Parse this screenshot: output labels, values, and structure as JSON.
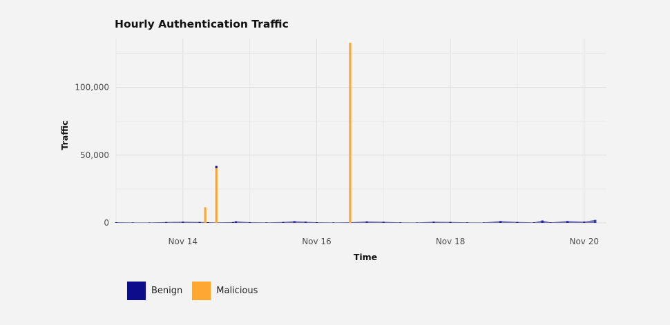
{
  "chart_data": {
    "type": "bar",
    "title": "Hourly Authentication Traffic",
    "xlabel": "Time",
    "ylabel": "Traffic",
    "ylim": [
      0,
      136000
    ],
    "y_ticks": [
      0,
      50000,
      100000
    ],
    "y_tick_labels": [
      "0",
      "50,000",
      "100,000"
    ],
    "x_range": [
      "2024-11-13T00:00",
      "2024-11-20T08:00"
    ],
    "x_ticks": [
      "2024-11-14T00:00",
      "2024-11-16T00:00",
      "2024-11-18T00:00",
      "2024-11-20T00:00"
    ],
    "x_tick_labels": [
      "Nov 14",
      "Nov 16",
      "Nov 18",
      "Nov 20"
    ],
    "grid": true,
    "legend_position": "bottom-left",
    "stacked": true,
    "series": [
      {
        "name": "Benign",
        "color": "#0d0d8c",
        "points": [
          [
            "2024-11-13T00:00",
            500
          ],
          [
            "2024-11-13T06:00",
            350
          ],
          [
            "2024-11-13T12:00",
            300
          ],
          [
            "2024-11-13T18:00",
            650
          ],
          [
            "2024-11-14T00:00",
            900
          ],
          [
            "2024-11-14T06:00",
            700
          ],
          [
            "2024-11-14T09:00",
            500
          ],
          [
            "2024-11-14T12:00",
            400
          ],
          [
            "2024-11-14T18:00",
            600
          ],
          [
            "2024-11-14T19:00",
            1200
          ],
          [
            "2024-11-15T00:00",
            500
          ],
          [
            "2024-11-15T06:00",
            350
          ],
          [
            "2024-11-15T12:00",
            700
          ],
          [
            "2024-11-15T16:00",
            1300
          ],
          [
            "2024-11-15T20:00",
            900
          ],
          [
            "2024-11-16T00:00",
            500
          ],
          [
            "2024-11-16T06:00",
            350
          ],
          [
            "2024-11-16T12:00",
            500
          ],
          [
            "2024-11-16T18:00",
            1100
          ],
          [
            "2024-11-17T00:00",
            800
          ],
          [
            "2024-11-17T06:00",
            400
          ],
          [
            "2024-11-17T12:00",
            300
          ],
          [
            "2024-11-17T18:00",
            900
          ],
          [
            "2024-11-18T00:00",
            700
          ],
          [
            "2024-11-18T06:00",
            400
          ],
          [
            "2024-11-18T12:00",
            350
          ],
          [
            "2024-11-18T18:00",
            1400
          ],
          [
            "2024-11-19T00:00",
            700
          ],
          [
            "2024-11-19T06:00",
            400
          ],
          [
            "2024-11-19T09:00",
            1800
          ],
          [
            "2024-11-19T12:00",
            400
          ],
          [
            "2024-11-19T18:00",
            1400
          ],
          [
            "2024-11-20T00:00",
            900
          ],
          [
            "2024-11-20T04:00",
            2200
          ]
        ]
      },
      {
        "name": "Malicious",
        "color": "#ffa733",
        "points": [
          [
            "2024-11-14T08:00",
            11500
          ],
          [
            "2024-11-14T12:00",
            40500
          ],
          [
            "2024-11-16T12:00",
            133000
          ]
        ]
      }
    ]
  },
  "legend": {
    "items": [
      {
        "label": "Benign",
        "color": "#0d0d8c"
      },
      {
        "label": "Malicious",
        "color": "#ffa733"
      }
    ]
  }
}
